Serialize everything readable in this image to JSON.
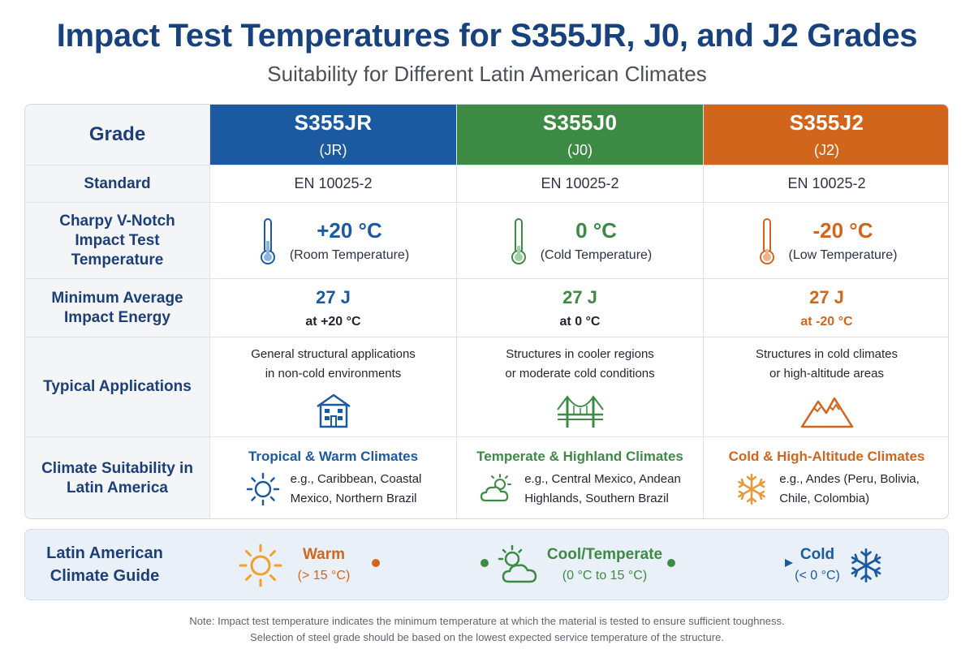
{
  "title": "Impact Test Temperatures for S355JR, J0, and J2 Grades",
  "subtitle": "Suitability for Different Latin American Climates",
  "colors": {
    "jr": "#1b5aa0",
    "j0": "#3d8a44",
    "j2": "#d2651c",
    "heading": "#17427d"
  },
  "table": {
    "header_label": "Grade",
    "grades": [
      {
        "name": "S355JR",
        "code": "(JR)"
      },
      {
        "name": "S355J0",
        "code": "(J0)"
      },
      {
        "name": "S355J2",
        "code": "(J2)"
      }
    ],
    "standard": {
      "label": "Standard",
      "values": [
        "EN 10025-2",
        "EN 10025-2",
        "EN 10025-2"
      ]
    },
    "impact_temp": {
      "label": "Charpy V-Notch Impact Test Temperature",
      "values": [
        {
          "temp": "+20 °C",
          "note": "(Room Temperature)",
          "icon": "thermometer-icon"
        },
        {
          "temp": "0 °C",
          "note": "(Cold Temperature)",
          "icon": "thermometer-icon"
        },
        {
          "temp": "-20 °C",
          "note": "(Low Temperature)",
          "icon": "thermometer-icon"
        }
      ]
    },
    "energy": {
      "label": "Minimum Average Impact Energy",
      "values": [
        {
          "energy": "27 J",
          "at": "at +20 °C"
        },
        {
          "energy": "27 J",
          "at": "at 0 °C"
        },
        {
          "energy": "27 J",
          "at": "at -20 °C"
        }
      ]
    },
    "applications": {
      "label": "Typical Applications",
      "values": [
        {
          "line1": "General structural applications",
          "line2": "in non-cold environments",
          "icon": "building-icon"
        },
        {
          "line1": "Structures in cooler regions",
          "line2": "or moderate cold conditions",
          "icon": "bridge-icon"
        },
        {
          "line1": "Structures in cold climates",
          "line2": "or high-altitude areas",
          "icon": "mountain-icon"
        }
      ]
    },
    "climate": {
      "label": "Climate Suitability in Latin America",
      "values": [
        {
          "title": "Tropical & Warm Climates",
          "line1": "e.g., Caribbean, Coastal",
          "line2": "Mexico, Northern Brazil",
          "icon": "sun-icon"
        },
        {
          "title": "Temperate & Highland Climates",
          "line1": "e.g., Central Mexico, Andean",
          "line2": "Highlands, Southern Brazil",
          "icon": "cloud-sun-icon"
        },
        {
          "title": "Cold & High-Altitude Climates",
          "line1": "e.g., Andes (Peru, Bolivia,",
          "line2": "Chile, Colombia)",
          "icon": "snowflake-icon"
        }
      ]
    }
  },
  "guide": {
    "title_line1": "Latin American",
    "title_line2": "Climate Guide",
    "items": [
      {
        "name": "Warm",
        "range": "(> 15 °C)",
        "icon": "sun-icon"
      },
      {
        "name": "Cool/Temperate",
        "range": "(0 °C to 15 °C)",
        "icon": "cloud-sun-icon"
      },
      {
        "name": "Cold",
        "range": "(< 0 °C)",
        "icon": "snowflake-icon"
      }
    ]
  },
  "note": {
    "line1": "Note: Impact test temperature indicates the minimum temperature at which the material is tested to ensure sufficient toughness.",
    "line2": "Selection of steel grade should be based on the lowest expected service temperature of the structure."
  }
}
